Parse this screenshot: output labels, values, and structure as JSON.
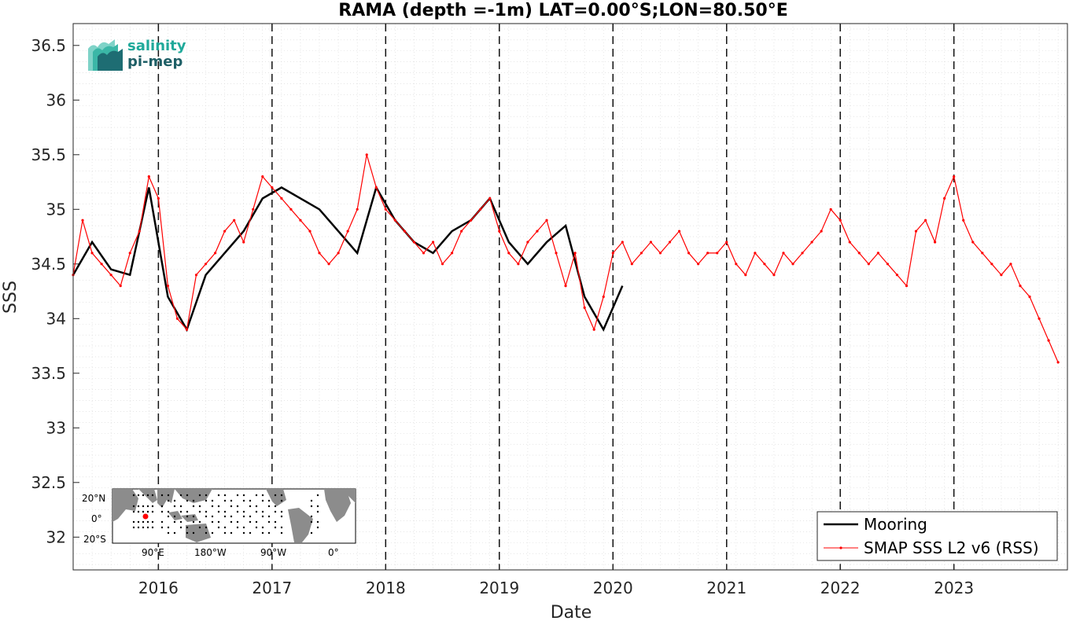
{
  "logo": {
    "line1": "salinity",
    "line2": "pi-mep",
    "colors": {
      "teal": "#1fa99a",
      "dark": "#1e5f66"
    }
  },
  "inset_map": {
    "lat_labels": [
      "20°N",
      "0°",
      "20°S"
    ],
    "lon_labels": [
      "90°E",
      "180°W",
      "90°W",
      "0°"
    ],
    "colors": {
      "land": "#8c8c8c",
      "ocean": "#ffffff",
      "mooring": "#000000",
      "selected": "#ff0000"
    }
  },
  "chart_data": {
    "type": "line",
    "title": "RAMA (depth =-1m) LAT=0.00°S;LON=80.50°E",
    "xlabel": "Date",
    "ylabel": "SSS",
    "xlim": [
      "2015-04-01",
      "2023-12-31"
    ],
    "ylim": [
      31.7,
      36.7
    ],
    "x_tick_labels": [
      "2016",
      "2017",
      "2018",
      "2019",
      "2020",
      "2021",
      "2022",
      "2023"
    ],
    "y_tick_labels": [
      "32",
      "32.5",
      "33",
      "33.5",
      "34",
      "34.5",
      "35",
      "35.5",
      "36",
      "36.5"
    ],
    "y_ticks": [
      32,
      32.5,
      33,
      33.5,
      34,
      34.5,
      35,
      35.5,
      36,
      36.5
    ],
    "grid": true,
    "year_markers": "dashed vertical lines at Jan 1 of each year",
    "legend_position": "bottom-right",
    "series": [
      {
        "name": "Mooring",
        "color": "#000000",
        "x": [
          "2015-04",
          "2015-06",
          "2015-08",
          "2015-10",
          "2015-12",
          "2016-02",
          "2016-04",
          "2016-06",
          "2016-08",
          "2016-10",
          "2016-12",
          "2017-02",
          "2017-04",
          "2017-06",
          "2017-08",
          "2017-10",
          "2017-12",
          "2018-02",
          "2018-04",
          "2018-06",
          "2018-08",
          "2018-10",
          "2018-12",
          "2019-02",
          "2019-04",
          "2019-06",
          "2019-08",
          "2019-10",
          "2019-12",
          "2020-02"
        ],
        "y": [
          34.4,
          34.7,
          34.45,
          34.4,
          35.2,
          34.2,
          33.9,
          34.4,
          34.6,
          34.8,
          35.1,
          35.2,
          35.1,
          35.0,
          34.8,
          34.6,
          35.2,
          34.9,
          34.7,
          34.6,
          34.8,
          34.9,
          35.1,
          34.7,
          34.5,
          34.7,
          34.85,
          34.2,
          33.9,
          34.3
        ]
      },
      {
        "name": "SMAP SSS L2 v6 (RSS)",
        "color": "#ff0000",
        "x": [
          "2015-04",
          "2015-05",
          "2015-06",
          "2015-07",
          "2015-08",
          "2015-09",
          "2015-10",
          "2015-11",
          "2015-12",
          "2016-01",
          "2016-02",
          "2016-03",
          "2016-04",
          "2016-05",
          "2016-06",
          "2016-07",
          "2016-08",
          "2016-09",
          "2016-10",
          "2016-11",
          "2016-12",
          "2017-01",
          "2017-02",
          "2017-03",
          "2017-04",
          "2017-05",
          "2017-06",
          "2017-07",
          "2017-08",
          "2017-09",
          "2017-10",
          "2017-11",
          "2017-12",
          "2018-01",
          "2018-02",
          "2018-03",
          "2018-04",
          "2018-05",
          "2018-06",
          "2018-07",
          "2018-08",
          "2018-09",
          "2018-10",
          "2018-11",
          "2018-12",
          "2019-01",
          "2019-02",
          "2019-03",
          "2019-04",
          "2019-05",
          "2019-06",
          "2019-07",
          "2019-08",
          "2019-09",
          "2019-10",
          "2019-11",
          "2019-12",
          "2020-01",
          "2020-02",
          "2020-03",
          "2020-04",
          "2020-05",
          "2020-06",
          "2020-07",
          "2020-08",
          "2020-09",
          "2020-10",
          "2020-11",
          "2020-12",
          "2021-01",
          "2021-02",
          "2021-03",
          "2021-04",
          "2021-05",
          "2021-06",
          "2021-07",
          "2021-08",
          "2021-09",
          "2021-10",
          "2021-11",
          "2021-12",
          "2022-01",
          "2022-02",
          "2022-03",
          "2022-04",
          "2022-05",
          "2022-06",
          "2022-07",
          "2022-08",
          "2022-09",
          "2022-10",
          "2022-11",
          "2022-12",
          "2023-01",
          "2023-02",
          "2023-03",
          "2023-04",
          "2023-05",
          "2023-06",
          "2023-07",
          "2023-08",
          "2023-09",
          "2023-10",
          "2023-11",
          "2023-12"
        ],
        "y": [
          34.4,
          34.9,
          34.6,
          34.5,
          34.4,
          34.3,
          34.6,
          34.8,
          35.3,
          35.1,
          34.3,
          34.0,
          33.9,
          34.4,
          34.5,
          34.6,
          34.8,
          34.9,
          34.7,
          35.0,
          35.3,
          35.2,
          35.1,
          35.0,
          34.9,
          34.8,
          34.6,
          34.5,
          34.6,
          34.8,
          35.0,
          35.5,
          35.2,
          35.0,
          34.9,
          34.8,
          34.7,
          34.6,
          34.7,
          34.5,
          34.6,
          34.8,
          34.9,
          35.0,
          35.1,
          34.8,
          34.6,
          34.5,
          34.7,
          34.8,
          34.9,
          34.6,
          34.3,
          34.6,
          34.1,
          33.9,
          34.2,
          34.6,
          34.7,
          34.5,
          34.6,
          34.7,
          34.6,
          34.7,
          34.8,
          34.6,
          34.5,
          34.6,
          34.6,
          34.7,
          34.5,
          34.4,
          34.6,
          34.5,
          34.4,
          34.6,
          34.5,
          34.6,
          34.7,
          34.8,
          35.0,
          34.9,
          34.7,
          34.6,
          34.5,
          34.6,
          34.5,
          34.4,
          34.3,
          34.8,
          34.9,
          34.7,
          35.1,
          35.3,
          34.9,
          34.7,
          34.6,
          34.5,
          34.4,
          34.5,
          34.3,
          34.2,
          34.0,
          33.8,
          33.6
        ]
      }
    ]
  }
}
